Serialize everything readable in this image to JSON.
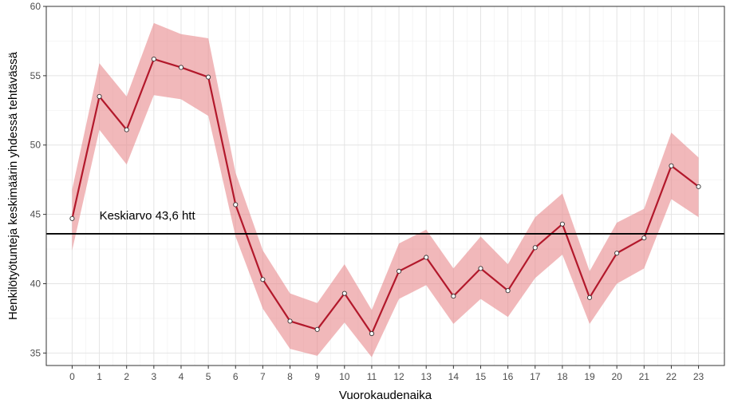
{
  "chart_data": {
    "type": "line",
    "xlabel": "Vuorokaudenaika",
    "ylabel": "Henkilötyötunteja keskimäärin yhdessä tehtävässä",
    "x": [
      0,
      1,
      2,
      3,
      4,
      5,
      6,
      7,
      8,
      9,
      10,
      11,
      12,
      13,
      14,
      15,
      16,
      17,
      18,
      19,
      20,
      21,
      22,
      23
    ],
    "x_ticks": [
      "0",
      "1",
      "2",
      "3",
      "4",
      "5",
      "6",
      "7",
      "8",
      "9",
      "10",
      "11",
      "12",
      "13",
      "14",
      "15",
      "16",
      "17",
      "18",
      "19",
      "20",
      "21",
      "22",
      "23"
    ],
    "y_ticks": [
      "35",
      "40",
      "45",
      "50",
      "55",
      "60"
    ],
    "xlim": [
      -0.95,
      23.95
    ],
    "ylim": [
      34.1,
      60
    ],
    "series": [
      {
        "values": [
          44.7,
          53.5,
          51.1,
          56.2,
          55.6,
          54.9,
          45.7,
          40.3,
          37.3,
          36.7,
          39.3,
          36.4,
          40.9,
          41.9,
          39.1,
          41.1,
          39.5,
          42.6,
          44.3,
          39.0,
          42.2,
          43.3,
          48.5,
          47.0
        ],
        "ci_upper": [
          46.8,
          55.9,
          53.5,
          58.8,
          58.0,
          57.7,
          48.0,
          42.4,
          39.3,
          38.6,
          41.4,
          38.1,
          42.9,
          43.9,
          41.1,
          43.4,
          41.4,
          44.8,
          46.5,
          40.9,
          44.4,
          45.4,
          50.9,
          49.1
        ],
        "ci_lower": [
          42.4,
          51.1,
          48.6,
          53.6,
          53.3,
          52.1,
          43.4,
          38.2,
          35.3,
          34.8,
          37.2,
          34.7,
          38.9,
          39.9,
          37.1,
          38.9,
          37.6,
          40.4,
          42.1,
          37.1,
          40.0,
          41.1,
          46.1,
          44.8
        ],
        "line_color": "#b2182b",
        "band_color": "#e8888c",
        "marker": "circle-open"
      }
    ],
    "reference_line": {
      "value": 43.6,
      "label": "Keskiarvo 43,6 htt",
      "color": "#000000"
    },
    "grid": true,
    "legend": "none"
  }
}
